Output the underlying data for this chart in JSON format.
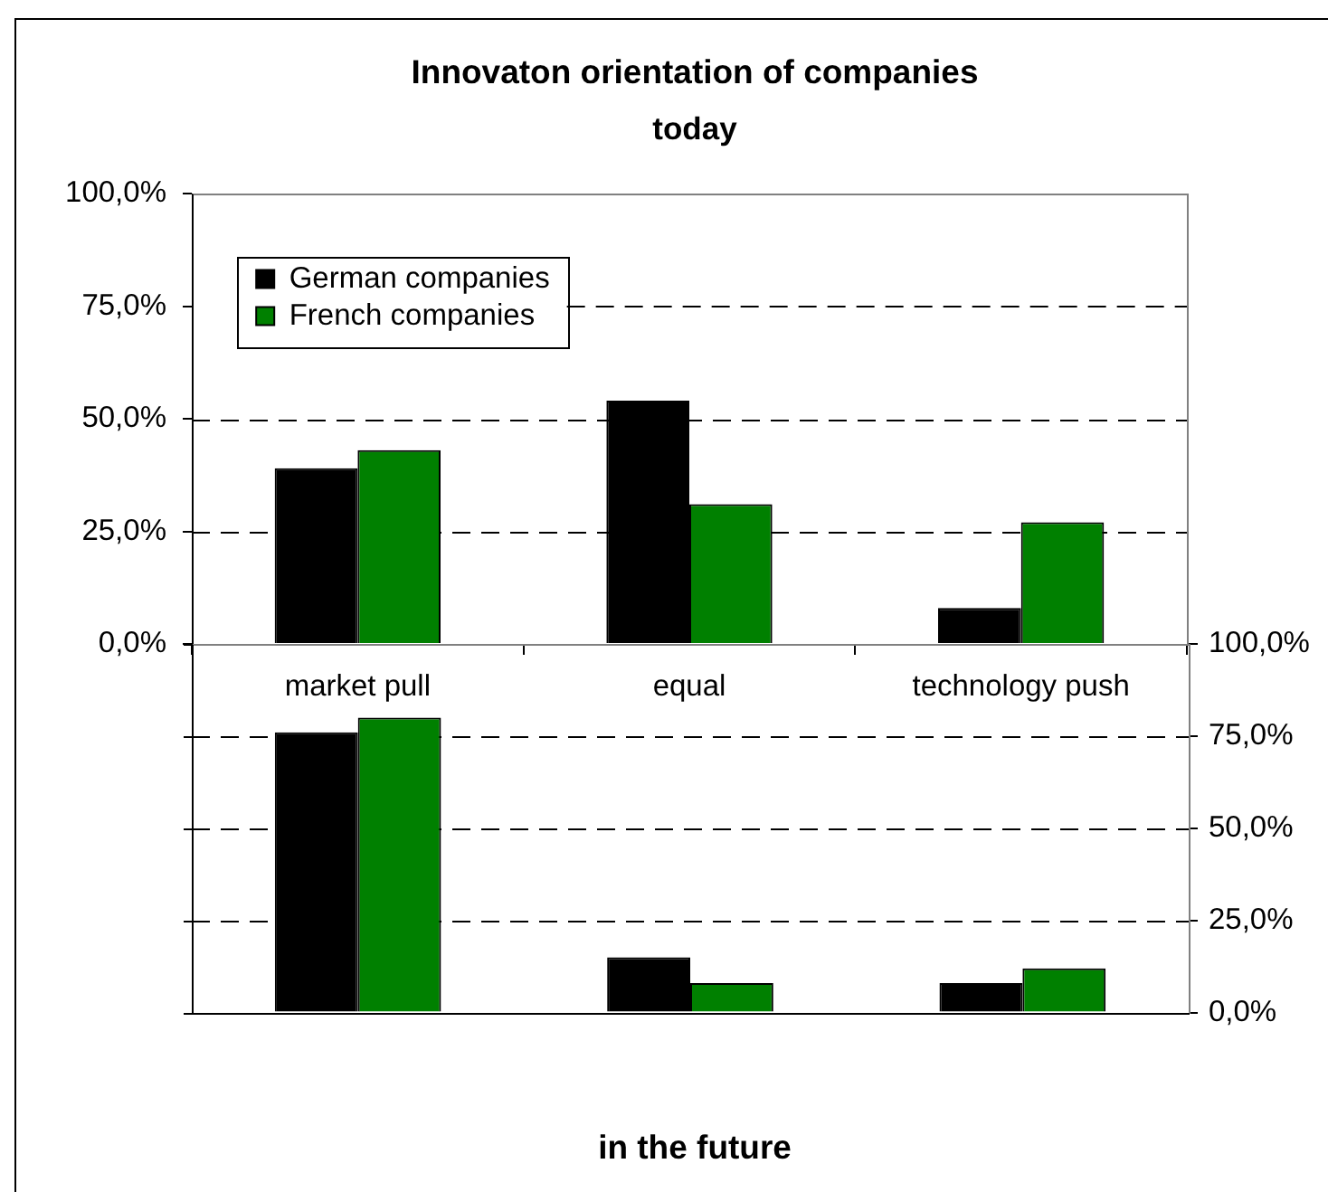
{
  "chart_data": [
    {
      "type": "bar",
      "title": "Innovaton orientation of companies",
      "subtitle": "today",
      "categories": [
        "market pull",
        "equal",
        "technology push"
      ],
      "series": [
        {
          "name": "German companies",
          "color": "#000000",
          "values": [
            39,
            54,
            8
          ]
        },
        {
          "name": "French companies",
          "color": "#008000",
          "values": [
            43,
            31,
            27
          ]
        }
      ],
      "ylim": [
        0,
        100
      ],
      "yticks": [
        {
          "value": 0,
          "label": "0,0%"
        },
        {
          "value": 25,
          "label": "25,0%"
        },
        {
          "value": 50,
          "label": "50,0%"
        },
        {
          "value": 75,
          "label": "75,0%"
        },
        {
          "value": 100,
          "label": "100,0%"
        }
      ],
      "grid": "y",
      "legend": "top left"
    },
    {
      "type": "bar",
      "title": "in the future",
      "categories": [
        null,
        null,
        null
      ],
      "series": [
        {
          "color": "#000000",
          "values": [
            76,
            15,
            8
          ]
        },
        {
          "color": "#008000",
          "values": [
            80,
            8,
            12
          ]
        }
      ],
      "ylim": [
        0,
        100
      ],
      "yticks": [
        {
          "value": 0,
          "label": "0,0%"
        },
        {
          "value": 25,
          "label": "25,0%"
        },
        {
          "value": 50,
          "label": "50,0%"
        },
        {
          "value": 75,
          "label": "75,0%"
        },
        {
          "value": 100,
          "label": "100,0%"
        }
      ],
      "grid": "y",
      "tick_labels": "y"
    }
  ]
}
